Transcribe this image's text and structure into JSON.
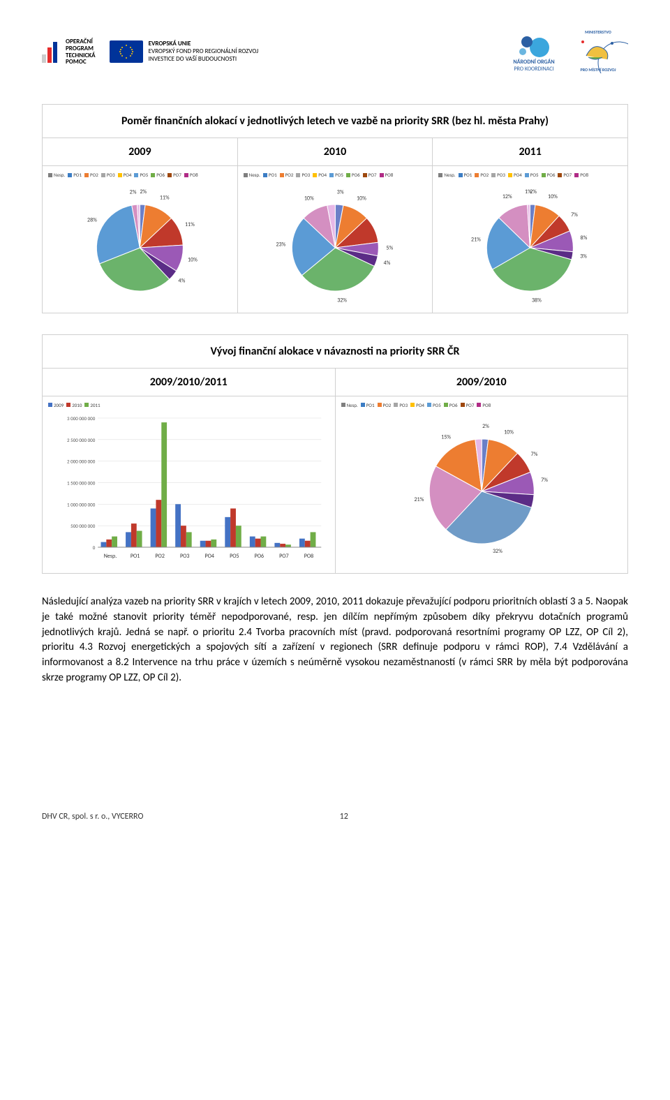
{
  "logos": {
    "op": {
      "lines": [
        "OPERAČNÍ",
        "PROGRAM",
        "TECHNICKÁ",
        "POMOC"
      ],
      "bar_colors": [
        "#cccccc",
        "#e62b2b",
        "#003399"
      ]
    },
    "eu": {
      "line1": "EVROPSKÁ UNIE",
      "line2": "EVROPSKÝ FOND PRO REGIONÁLNÍ ROZVOJ",
      "line3": "INVESTICE DO VAŠÍ BUDOUCNOSTI"
    },
    "nok": {
      "line1": "NÁRODNÍ ORGÁN",
      "line2": "PRO KOORDINACI"
    },
    "mmr": {
      "text_top": "MINISTERSTVO",
      "text_bottom": "PRO MÍSTNÍ ROZVOJ"
    }
  },
  "table1": {
    "title": "Poměr finančních alokací v jednotlivých letech ve vazbě na priority SRR (bez hl. města Prahy)",
    "years": [
      "2009",
      "2010",
      "2011"
    ],
    "legend_labels": [
      "Nesp.",
      "PO1",
      "PO2",
      "PO3",
      "PO4",
      "PO5",
      "PO6",
      "PO7",
      "PO8"
    ],
    "legend_colors": [
      "#7f7f7f",
      "#3c7dc4",
      "#ed7d31",
      "#a5a5a5",
      "#ffc000",
      "#5b9bd5",
      "#70ad47",
      "#9e480e",
      "#b02b86"
    ],
    "series_colors": [
      "#6b7fc7",
      "#ed7d31",
      "#c0392b",
      "#9b59b6",
      "#5b2c86",
      "#6bb36b",
      "#5b9bd5",
      "#d48fc1",
      "#e6b8e6"
    ],
    "pies": [
      {
        "slices": [
          2,
          11,
          11,
          10,
          4,
          31,
          28,
          2,
          1
        ],
        "labels": [
          "2%",
          "11%",
          "11%",
          "10%",
          "4%",
          "",
          "28%",
          "2%",
          ""
        ]
      },
      {
        "slices": [
          3,
          10,
          10,
          5,
          4,
          32,
          23,
          10,
          3
        ],
        "labels": [
          "3%",
          "10%",
          "",
          "5%",
          "4%",
          "32%",
          "23%",
          "10%",
          ""
        ]
      },
      {
        "slices": [
          2,
          10,
          7,
          8,
          3,
          38,
          21,
          12,
          1
        ],
        "labels": [
          "2%",
          "10%",
          "7%",
          "8%",
          "3%",
          "38%",
          "21%",
          "12%",
          "1%"
        ]
      }
    ]
  },
  "table2": {
    "title": "Vývoj finanční alokace v návaznosti na priority SRR ČR",
    "cols": [
      "2009/2010/2011",
      "2009/2010"
    ],
    "bar": {
      "legend_labels": [
        "2009",
        "2010",
        "2011"
      ],
      "legend_colors": [
        "#4472c4",
        "#c0392b",
        "#70ad47"
      ],
      "categories": [
        "Nesp.",
        "PO1",
        "PO2",
        "PO3",
        "PO4",
        "PO5",
        "PO6",
        "PO7",
        "PO8"
      ],
      "ymax": 3000000000,
      "ytick_step": 500000000,
      "yticks": [
        "0",
        "500 000 000",
        "1 000 000 000",
        "1 500 000 000",
        "2 000 000 000",
        "2 500 000 000",
        "3 000 000 000"
      ],
      "values_2009": [
        120000000,
        350000000,
        900000000,
        1000000000,
        150000000,
        700000000,
        250000000,
        100000000,
        200000000
      ],
      "values_2010": [
        180000000,
        550000000,
        1100000000,
        500000000,
        150000000,
        900000000,
        200000000,
        80000000,
        150000000
      ],
      "values_2011": [
        250000000,
        380000000,
        2900000000,
        350000000,
        180000000,
        500000000,
        250000000,
        60000000,
        350000000
      ]
    },
    "pie": {
      "legend_labels": [
        "Nesp.",
        "PO1",
        "PO2",
        "PO3",
        "PO4",
        "PO5",
        "PO6",
        "PO7",
        "PO8"
      ],
      "slices": [
        2,
        10,
        7,
        7,
        4,
        32,
        21,
        15,
        2
      ],
      "labels": [
        "2%",
        "10%",
        "7%",
        "7%",
        "",
        "32%",
        "21%",
        "15%",
        ""
      ],
      "colors": [
        "#6b7fc7",
        "#ed7d31",
        "#c0392b",
        "#9b59b6",
        "#5b2c86",
        "#6f9bc7",
        "#d48fc1",
        "#ed7d31",
        "#e6b8e6"
      ]
    }
  },
  "body_text": "Následující analýza vazeb na priority SRR v krajích v letech 2009, 2010, 2011 dokazuje převažující podporu prioritních oblastí 3 a 5. Naopak je také možné stanovit priority téměř nepodporované, resp. jen dílčím nepřímým způsobem díky překryvu dotačních programů jednotlivých krajů. Jedná se např. o prioritu 2.4 Tvorba pracovních míst (pravd. podporovaná resortními programy OP LZZ, OP Cíl 2), prioritu 4.3 Rozvoj energetických a spojových sítí a  zařízení v regionech (SRR definuje podporu v rámci ROP), 7.4 Vzdělávání a informovanost a 8.2 Intervence na trhu práce v územích s neúměrně vysokou nezaměstnaností (v rámci SRR by měla být podporována skrze programy OP LZZ, OP Cíl 2).",
  "footer": {
    "left": "DHV CR, spol. s r. o., VYCERRO",
    "page": "12"
  }
}
